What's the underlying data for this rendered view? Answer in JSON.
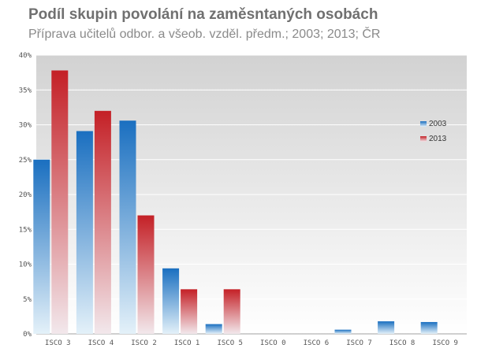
{
  "chart_data": {
    "type": "bar",
    "title": "Podíl skupin povolání na zaměsntaných osobách",
    "subtitle": "Příprava učitelů odbor. a všeob. vzděl. předm.; 2003; 2013; ČR",
    "categories": [
      "ISCO 3",
      "ISCO 4",
      "ISCO 2",
      "ISCO 1",
      "ISCO 5",
      "ISCO 0",
      "ISCO 6",
      "ISCO 7",
      "ISCO 8",
      "ISCO 9"
    ],
    "series": [
      {
        "name": "2003",
        "values": [
          25.0,
          29.1,
          30.6,
          9.4,
          1.4,
          0,
          0,
          0.6,
          1.8,
          1.7
        ],
        "color": "#1a6fc0"
      },
      {
        "name": "2013",
        "values": [
          37.8,
          32.0,
          17.0,
          6.4,
          6.4,
          0,
          0,
          0,
          0,
          0
        ],
        "color": "#c42026"
      }
    ],
    "ylim": [
      0,
      40
    ],
    "yticks": [
      "0%",
      "5%",
      "10%",
      "15%",
      "20%",
      "25%",
      "30%",
      "35%",
      "40%"
    ],
    "grid": true,
    "legend_position": "right"
  }
}
